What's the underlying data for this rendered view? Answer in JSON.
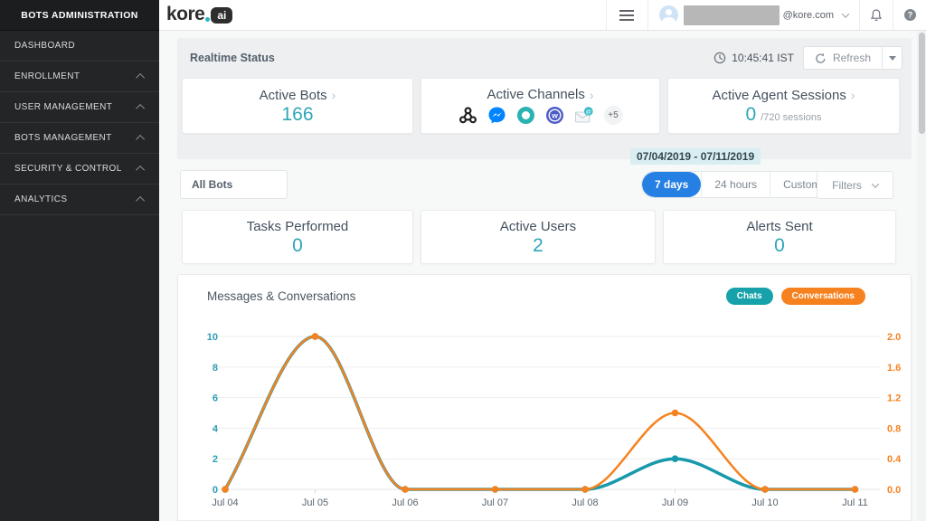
{
  "sidebar": {
    "title": "BOTS ADMINISTRATION",
    "items": [
      {
        "label": "DASHBOARD",
        "expandable": false
      },
      {
        "label": "ENROLLMENT",
        "expandable": true
      },
      {
        "label": "USER MANAGEMENT",
        "expandable": true
      },
      {
        "label": "BOTS MANAGEMENT",
        "expandable": true
      },
      {
        "label": "SECURITY & CONTROL",
        "expandable": true
      },
      {
        "label": "ANALYTICS",
        "expandable": true
      }
    ]
  },
  "topbar": {
    "logo_text": "kore",
    "logo_badge": "ai",
    "user_domain": "@kore.com"
  },
  "realtime": {
    "section_title": "Realtime Status",
    "time": "10:45:41 IST",
    "refresh_label": "Refresh",
    "cards": [
      {
        "title": "Active Bots",
        "value": "166"
      },
      {
        "title": "Active Channels",
        "channels": [
          "webhook",
          "facebook-messenger",
          "kore-messenger",
          "workplace-chat",
          "email"
        ],
        "more_badge": "+5"
      },
      {
        "title": "Active Agent Sessions",
        "value": "0",
        "suffix": "/720 sessions"
      }
    ]
  },
  "filters": {
    "date_range": "07/04/2019 - 07/11/2019",
    "bot_selector": "All Bots",
    "range_buttons": [
      "7 days",
      "24 hours",
      "Custom"
    ],
    "active_range": "7 days",
    "filters_label": "Filters"
  },
  "metric_cards": [
    {
      "title": "Tasks Performed",
      "value": "0"
    },
    {
      "title": "Active Users",
      "value": "2"
    },
    {
      "title": "Alerts Sent",
      "value": "0"
    }
  ],
  "chart": {
    "title": "Messages & Conversations",
    "legend": [
      {
        "label": "Chats",
        "color": "#17a2ab"
      },
      {
        "label": "Conversations",
        "color": "#f6821f"
      }
    ]
  },
  "chart_data": {
    "type": "line",
    "title": "Messages & Conversations",
    "x": [
      "Jul 04",
      "Jul 05",
      "Jul 06",
      "Jul 07",
      "Jul 08",
      "Jul 09",
      "Jul 10",
      "Jul 11"
    ],
    "series": [
      {
        "name": "Chats",
        "axis": "left",
        "color": "#1799ab",
        "values": [
          0,
          10,
          0,
          0,
          0,
          2,
          0,
          0
        ]
      },
      {
        "name": "Conversations",
        "axis": "right",
        "color": "#f6821f",
        "values": [
          0,
          2,
          0,
          0,
          0,
          1,
          0,
          0
        ]
      }
    ],
    "left_axis": {
      "min": 0,
      "max": 10,
      "ticks": [
        "0",
        "2",
        "4",
        "6",
        "8",
        "10"
      ],
      "color": "#2e9fb5"
    },
    "right_axis": {
      "min": 0,
      "max": 2,
      "ticks": [
        "0.0",
        "0.4",
        "0.8",
        "1.2",
        "1.6",
        "2.0"
      ],
      "color": "#f6821f"
    },
    "grid": true,
    "legend_position": "top-right"
  },
  "colors": {
    "accent_teal": "#2ea6b8",
    "active_blue": "#2680e3",
    "chats_teal": "#17a2ab",
    "conversations_orange": "#f6821f"
  }
}
